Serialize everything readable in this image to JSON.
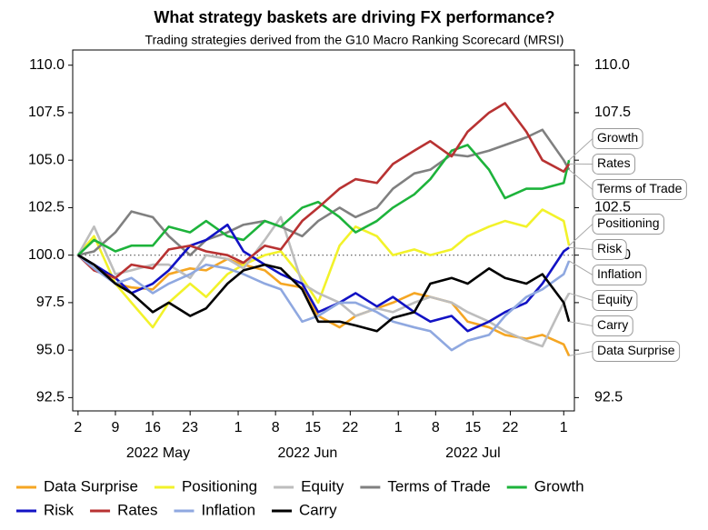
{
  "chart_data": {
    "type": "line",
    "title": "What strategy baskets are driving FX performance?",
    "subtitle": "Trading strategies derived from the G10 Macro Ranking Scorecard (MRSI)",
    "x": [
      "2022-05-02",
      "2022-05-05",
      "2022-05-09",
      "2022-05-12",
      "2022-05-16",
      "2022-05-19",
      "2022-05-23",
      "2022-05-26",
      "2022-05-30",
      "2022-06-02",
      "2022-06-06",
      "2022-06-09",
      "2022-06-13",
      "2022-06-16",
      "2022-06-20",
      "2022-06-23",
      "2022-06-27",
      "2022-06-30",
      "2022-07-04",
      "2022-07-07",
      "2022-07-11",
      "2022-07-14",
      "2022-07-18",
      "2022-07-21",
      "2022-07-25",
      "2022-07-28",
      "2022-08-01",
      "2022-08-02"
    ],
    "xlim": [
      "2022-05-01",
      "2022-08-03"
    ],
    "xticks": [
      {
        "value": "2022-05-02",
        "label": "2"
      },
      {
        "value": "2022-05-09",
        "label": "9"
      },
      {
        "value": "2022-05-16",
        "label": "16"
      },
      {
        "value": "2022-05-23",
        "label": "23"
      },
      {
        "value": "2022-06-01",
        "label": "1"
      },
      {
        "value": "2022-06-08",
        "label": "8"
      },
      {
        "value": "2022-06-15",
        "label": "15"
      },
      {
        "value": "2022-06-22",
        "label": "22"
      },
      {
        "value": "2022-07-01",
        "label": "1"
      },
      {
        "value": "2022-07-08",
        "label": "8"
      },
      {
        "value": "2022-07-15",
        "label": "15"
      },
      {
        "value": "2022-07-22",
        "label": "22"
      },
      {
        "value": "2022-08-01",
        "label": "1"
      }
    ],
    "month_ticks": [
      {
        "value": "2022-05-17",
        "label": "2022 May"
      },
      {
        "value": "2022-06-14",
        "label": "2022 Jun"
      },
      {
        "value": "2022-07-15",
        "label": "2022 Jul"
      }
    ],
    "ylim": [
      91.8,
      110.8
    ],
    "yticks": [
      {
        "value": 92.5,
        "label": "92.5"
      },
      {
        "value": 95,
        "label": "95.0"
      },
      {
        "value": 97.5,
        "label": "97.5"
      },
      {
        "value": 100,
        "label": "100.0"
      },
      {
        "value": 102.5,
        "label": "102.5"
      },
      {
        "value": 105,
        "label": "105.0"
      },
      {
        "value": 107.5,
        "label": "107.5"
      },
      {
        "value": 110,
        "label": "110.0"
      }
    ],
    "y2lim": [
      91.8,
      110.8
    ],
    "y2ticks": [
      {
        "value": 92.5,
        "label": "92.5"
      },
      {
        "value": 95,
        "label": "95.0"
      },
      {
        "value": 97.5,
        "label": "97.5"
      },
      {
        "value": 100,
        "label": "100.0"
      },
      {
        "value": 102.5,
        "label": "102.5"
      },
      {
        "value": 105,
        "label": "105.0"
      },
      {
        "value": 107.5,
        "label": "107.5"
      },
      {
        "value": 110,
        "label": "110.0"
      }
    ],
    "reference_line": 100,
    "grid": false,
    "series": [
      {
        "name": "Data Surprise",
        "color": "#f5a623",
        "values": [
          100,
          99.5,
          98.5,
          98.3,
          98.2,
          99,
          99.3,
          99.2,
          99.8,
          99.5,
          99.2,
          98.5,
          98.3,
          96.8,
          96.2,
          96.8,
          97.2,
          97.5,
          98,
          97.8,
          97.5,
          96.5,
          96.2,
          95.8,
          95.6,
          95.8,
          95.3,
          94.7
        ]
      },
      {
        "name": "Positioning",
        "color": "#f2f22a",
        "values": [
          100,
          101,
          98.5,
          97.5,
          96.2,
          97.5,
          98.5,
          97.8,
          99,
          99.5,
          100,
          100.2,
          98.8,
          97.5,
          100.5,
          101.5,
          101,
          100,
          100.3,
          100,
          100.3,
          101,
          101.5,
          101.8,
          101.5,
          102.4,
          101.8,
          100.5
        ]
      },
      {
        "name": "Equity",
        "color": "#bdbdbd",
        "values": [
          100,
          101.5,
          99,
          99.2,
          99.5,
          99.5,
          98.8,
          100,
          99.8,
          99.3,
          100.8,
          102,
          98.5,
          98,
          97.5,
          96.8,
          97.2,
          97,
          97.5,
          97.8,
          97.5,
          97,
          96.5,
          96,
          95.5,
          95.2,
          97.5,
          98
        ]
      },
      {
        "name": "Terms of Trade",
        "color": "#808080",
        "values": [
          100,
          100.2,
          101.2,
          102.3,
          102,
          101,
          100,
          100.8,
          101.2,
          101.6,
          101.8,
          101.5,
          101,
          101.8,
          102.5,
          102,
          102.5,
          103.5,
          104.3,
          104.5,
          105.3,
          105.2,
          105.5,
          105.8,
          106.2,
          106.6,
          105,
          104.5
        ]
      },
      {
        "name": "Growth",
        "color": "#1db33b",
        "values": [
          100,
          100.8,
          100.2,
          100.5,
          100.5,
          101.5,
          101.2,
          101.8,
          101,
          100.8,
          101.8,
          101.5,
          102.5,
          102.8,
          102,
          101.2,
          101.8,
          102.5,
          103.2,
          104,
          105.5,
          105.8,
          104.5,
          103,
          103.5,
          103.5,
          103.8,
          105
        ]
      },
      {
        "name": "Risk",
        "color": "#1212c4",
        "values": [
          100,
          99.5,
          98.8,
          98,
          98.5,
          99.2,
          100.5,
          100.8,
          101.6,
          100.2,
          99.5,
          99,
          98.5,
          97,
          97.5,
          98,
          97.3,
          97.8,
          97,
          96.5,
          96.8,
          96,
          96.5,
          97,
          97.5,
          98.5,
          100.2,
          100.4
        ]
      },
      {
        "name": "Rates",
        "color": "#b83232",
        "values": [
          100,
          99.2,
          98.8,
          99.5,
          99.3,
          100.3,
          100.5,
          100.2,
          100,
          99.6,
          100.5,
          100.3,
          101.8,
          102.5,
          103.5,
          104,
          103.8,
          104.8,
          105.5,
          106,
          105.2,
          106.5,
          107.5,
          108,
          106.5,
          105,
          104.4,
          104.8
        ]
      },
      {
        "name": "Inflation",
        "color": "#8fa8e0",
        "values": [
          100,
          99.3,
          98.5,
          98.8,
          98,
          98.5,
          99,
          99.5,
          99.3,
          99,
          98.5,
          98.2,
          96.5,
          96.8,
          97.5,
          97.5,
          97,
          96.5,
          96.2,
          96,
          95,
          95.5,
          95.8,
          96.8,
          97.8,
          98.2,
          99,
          99.7
        ]
      },
      {
        "name": "Carry",
        "color": "#000000",
        "values": [
          100,
          99.5,
          98.5,
          98,
          97,
          97.5,
          96.8,
          97.2,
          98.5,
          99.2,
          99.5,
          99.3,
          98.2,
          96.5,
          96.5,
          96.3,
          96,
          96.7,
          97,
          98.5,
          98.8,
          98.5,
          99.3,
          98.8,
          98.5,
          99,
          97.5,
          96.5
        ]
      }
    ]
  }
}
